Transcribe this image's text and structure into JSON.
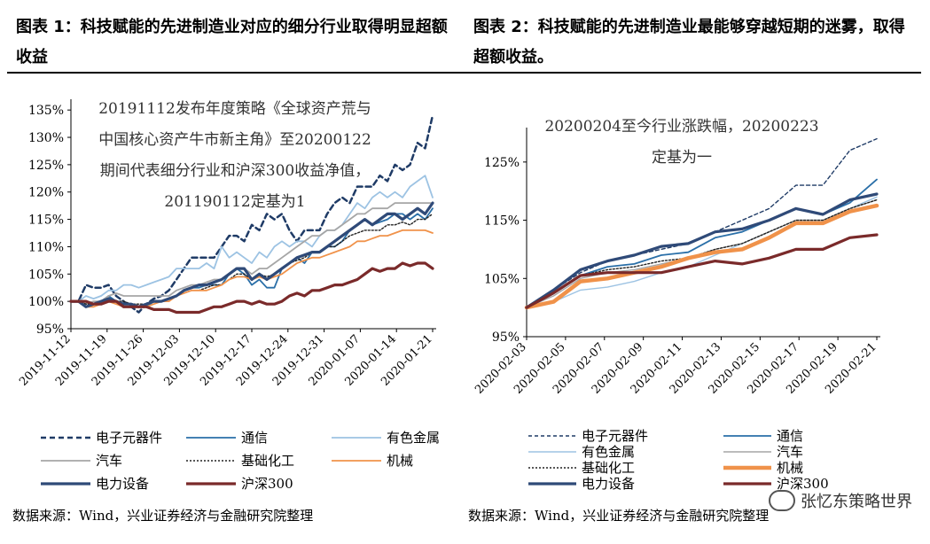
{
  "left": {
    "title": "图表 1：科技赋能的先进制造业对应的细分行业取得明显超额收益",
    "source": "数据来源：Wind，兴业证券经济与金融研究院整理"
  },
  "right": {
    "title": "图表 2：科技赋能的先进制造业最能够穿越短期的迷雾，取得超额收益。",
    "source": "数据来源：Wind，兴业证券经济与金融研究院整理"
  },
  "watermark": "张忆东策略世界",
  "colors": {
    "电子元器件": "#1f3b66",
    "通信": "#2a6fa8",
    "有色金属": "#9dc3e3",
    "汽车": "#a6a6a6",
    "基础化工": "#222222",
    "机械": "#f0924a",
    "电力设备": "#2f4a78",
    "沪深300": "#7a2a2a"
  },
  "chart_data": [
    {
      "type": "line",
      "annotation": [
        "20191112发布年度策略《全球资产荒与",
        "中国核心资产牛市新主角》至20200122",
        "期间代表细分行业和沪深300收益净值，",
        "201190112定基为1"
      ],
      "yticks": [
        "95%",
        "100%",
        "105%",
        "110%",
        "115%",
        "120%",
        "125%",
        "130%",
        "135%"
      ],
      "ylim": [
        95,
        136
      ],
      "xticks": [
        "2019-11-12",
        "2019-11-19",
        "2019-11-26",
        "2019-12-03",
        "2019-12-10",
        "2019-12-17",
        "2019-12-24",
        "2019-12-31",
        "2020-01-07",
        "2020-01-14",
        "2020-01-21"
      ],
      "n": 49,
      "legend": [
        "电子元器件",
        "通信",
        "有色金属",
        "汽车",
        "基础化工",
        "机械",
        "电力设备",
        "沪深300"
      ],
      "series": [
        {
          "name": "电子元器件",
          "values": [
            100,
            100,
            103,
            102.5,
            102.5,
            103,
            101,
            100,
            99,
            98,
            99.5,
            100.5,
            101,
            102,
            104,
            106,
            108,
            108,
            108,
            108,
            110,
            112,
            112,
            111,
            114,
            113,
            116,
            115,
            116,
            113,
            111,
            113,
            113,
            113,
            116,
            118,
            119,
            118,
            121,
            121,
            121,
            123,
            122,
            125,
            124,
            125,
            129,
            128,
            134
          ]
        },
        {
          "name": "通信",
          "values": [
            100,
            100,
            99,
            99.5,
            100,
            101,
            100,
            99.5,
            99.5,
            99,
            99,
            100,
            100,
            100.5,
            101,
            102,
            102.5,
            102.5,
            103,
            103,
            103,
            105,
            106,
            105,
            103,
            104,
            102.5,
            102.5,
            106,
            107,
            108,
            107,
            109,
            109,
            110,
            110,
            111,
            113,
            114,
            115,
            114,
            114.5,
            115,
            116,
            116,
            115,
            116,
            115,
            117
          ]
        },
        {
          "name": "有色金属",
          "values": [
            100,
            100,
            101,
            100.5,
            101,
            102,
            102,
            103,
            103,
            102.5,
            103,
            103.5,
            104,
            104.5,
            106,
            106,
            106,
            106,
            107,
            106,
            110,
            108,
            109,
            108,
            107,
            109,
            108,
            110,
            111,
            110,
            111,
            111,
            110,
            112,
            113,
            113,
            114,
            116,
            118,
            117,
            119,
            120,
            119,
            120,
            119,
            121,
            122,
            123,
            119
          ]
        },
        {
          "name": "汽车",
          "values": [
            100,
            100,
            99.5,
            100,
            100,
            101,
            101.5,
            101,
            101,
            101,
            101,
            101,
            101,
            101,
            102,
            102.5,
            103,
            103,
            103.5,
            104,
            104,
            105,
            106,
            106,
            105,
            106,
            106,
            107,
            108,
            109,
            110,
            111,
            112,
            112,
            113,
            113,
            114,
            115,
            116,
            116,
            117,
            117,
            117,
            118,
            118,
            118,
            118,
            118,
            118
          ]
        },
        {
          "name": "基础化工",
          "values": [
            100,
            100,
            99.5,
            99.5,
            99.5,
            100,
            100,
            100,
            99.5,
            99.5,
            99.5,
            100,
            100,
            100.5,
            101,
            101.5,
            102,
            102,
            102.5,
            103,
            103,
            104,
            105,
            105,
            104,
            105,
            104.5,
            105,
            106,
            107,
            107.5,
            108,
            109,
            109,
            110,
            110,
            111,
            112,
            112.5,
            113,
            113,
            113,
            114,
            114,
            114.5,
            114,
            115,
            115,
            116
          ]
        },
        {
          "name": "机械",
          "values": [
            100,
            100,
            99,
            99,
            99.5,
            100,
            99.5,
            99,
            99,
            99,
            99,
            99.5,
            100,
            100,
            101,
            101.5,
            102,
            102,
            102,
            102.5,
            103,
            104,
            104.5,
            104.5,
            104,
            104.5,
            104,
            104.5,
            105,
            106,
            107,
            107.5,
            108,
            108,
            108.5,
            109,
            109.5,
            110,
            111,
            111,
            111.5,
            112,
            112,
            112.5,
            113,
            113,
            113,
            113,
            112.5
          ]
        },
        {
          "name": "电力设备",
          "values": [
            100,
            100,
            99,
            99.5,
            100,
            100.5,
            100,
            99.5,
            99.5,
            99,
            99.5,
            100,
            100,
            100.5,
            101,
            102,
            102.5,
            103,
            103,
            103.5,
            104,
            105,
            106,
            106,
            104,
            105,
            104,
            105,
            106,
            107,
            108,
            108.5,
            109,
            109,
            110,
            111,
            112,
            113,
            114,
            115,
            114,
            115,
            116,
            116,
            115,
            116,
            117,
            116,
            118
          ]
        },
        {
          "name": "沪深300",
          "values": [
            100,
            100,
            100,
            99.5,
            99.5,
            100,
            100,
            99,
            99,
            99,
            99,
            98.5,
            98.5,
            98.5,
            98,
            98,
            98,
            98,
            98.5,
            99,
            99,
            99.5,
            100,
            100,
            99.5,
            100,
            99.5,
            99.5,
            100,
            101,
            101.5,
            101,
            102,
            102,
            102.5,
            103,
            103,
            103.5,
            104,
            105,
            106,
            105.5,
            106,
            106,
            107,
            106.5,
            107,
            107,
            106
          ]
        }
      ]
    },
    {
      "type": "line",
      "annotation": [
        "20200204至今行业涨跌幅，20200223",
        "定基为一"
      ],
      "yticks": [
        "95%",
        "105%",
        "115%",
        "125%"
      ],
      "ylim": [
        95,
        130
      ],
      "xticks": [
        "2020-02-03",
        "2020-02-05",
        "2020-02-07",
        "2020-02-09",
        "2020-02-11",
        "2020-02-13",
        "2020-02-15",
        "2020-02-17",
        "2020-02-19",
        "2020-02-21"
      ],
      "n": 14,
      "legend": [
        "电子元器件",
        "通信",
        "有色金属",
        "汽车",
        "基础化工",
        "机械",
        "电力设备",
        "沪深300"
      ],
      "series": [
        {
          "name": "电子元器件",
          "values": [
            100,
            103,
            106,
            108,
            109,
            110,
            111,
            113,
            115,
            117,
            121,
            121,
            127,
            129
          ]
        },
        {
          "name": "通信",
          "values": [
            100,
            102.5,
            105.5,
            107,
            107.5,
            109,
            109.5,
            112,
            113,
            115,
            117,
            116,
            118,
            122
          ]
        },
        {
          "name": "有色金属",
          "values": [
            100,
            101,
            103,
            103.5,
            104.5,
            106,
            107,
            109,
            111,
            113,
            115,
            115,
            117,
            119
          ]
        },
        {
          "name": "汽车",
          "values": [
            100,
            102,
            105,
            106,
            106.5,
            107.5,
            108.5,
            110,
            111,
            113,
            115,
            115,
            117,
            118.5
          ]
        },
        {
          "name": "基础化工",
          "values": [
            100,
            102.5,
            105.5,
            106.5,
            107,
            108,
            108.5,
            110,
            111,
            113,
            115,
            115,
            117,
            118.5
          ]
        },
        {
          "name": "机械",
          "values": [
            100,
            101,
            104.5,
            105,
            106,
            107,
            108.5,
            109.5,
            110,
            112,
            114.5,
            114.5,
            116.5,
            117.5
          ]
        },
        {
          "name": "电力设备",
          "values": [
            100,
            103,
            106.5,
            108,
            109,
            110.5,
            111,
            113,
            113.5,
            115,
            117,
            116,
            118.5,
            119.5
          ]
        },
        {
          "name": "沪深300",
          "values": [
            100,
            102.5,
            105.5,
            106,
            106,
            106,
            107,
            108,
            107.5,
            108.5,
            110,
            110,
            112,
            112.5
          ]
        }
      ]
    }
  ]
}
